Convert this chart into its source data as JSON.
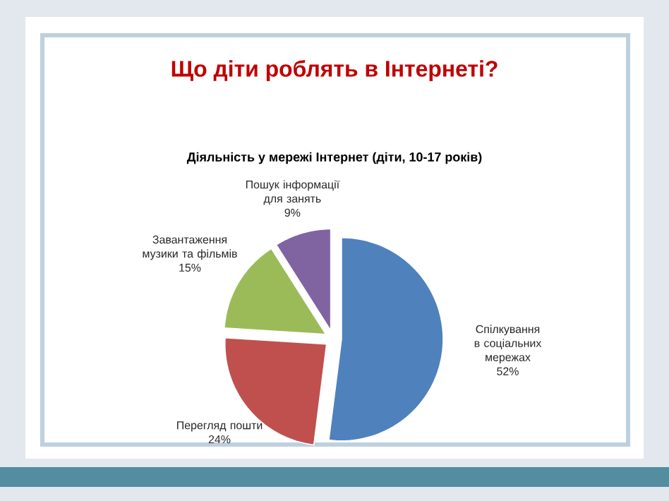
{
  "chart_data": {
    "type": "pie",
    "title": "Що діти роблять в Інтернеті?",
    "subtitle": "Діяльність у мережі Інтернет (діти, 10-17 років)",
    "categories": [
      "Спілкування в соціальних мережах",
      "Перегляд пошти",
      "Завантаження музики та фільмів",
      "Пошук інформації для занять"
    ],
    "values": [
      52,
      24,
      15,
      9
    ],
    "value_labels": [
      "52%",
      "24%",
      "15%",
      "9%"
    ],
    "colors": [
      "#4f81bd",
      "#c0504d",
      "#9bbb59",
      "#8064a2"
    ]
  }
}
